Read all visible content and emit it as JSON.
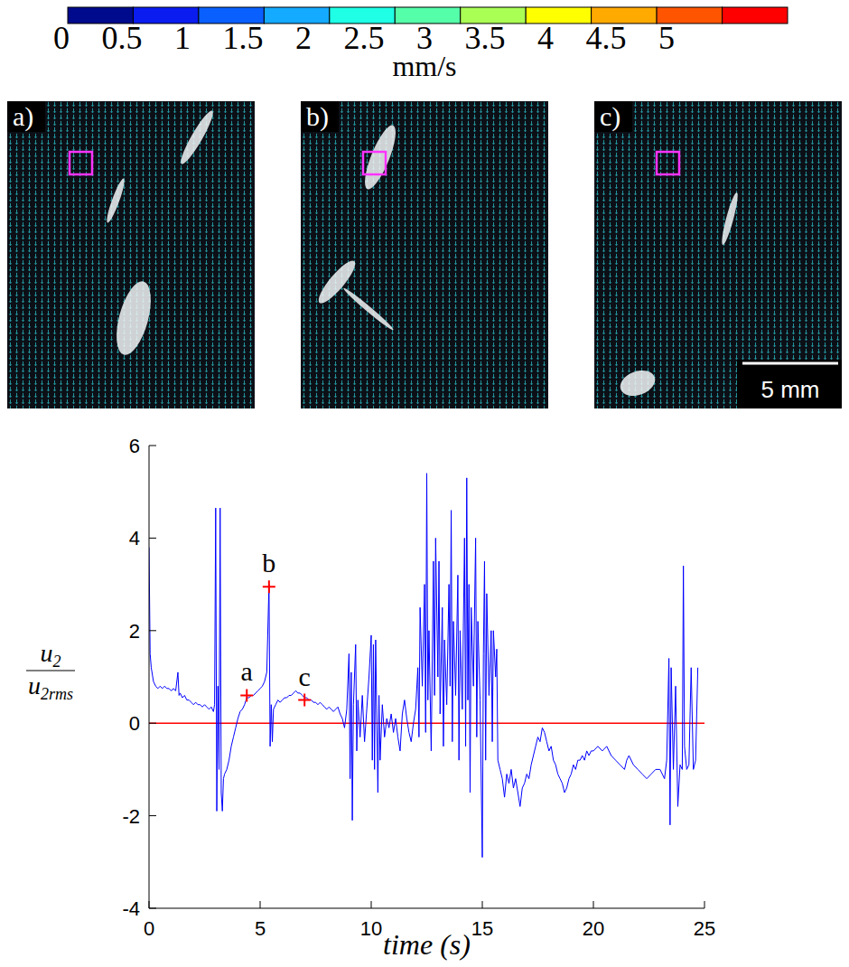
{
  "colorbar": {
    "ticks": [
      0,
      0.5,
      1,
      1.5,
      2,
      2.5,
      3,
      3.5,
      4,
      4.5,
      5
    ],
    "colors": [
      "#000a8c",
      "#0a1cf0",
      "#0a5fff",
      "#14aaff",
      "#1effe6",
      "#55ffaa",
      "#aaff55",
      "#ffff00",
      "#ffaa00",
      "#ff5500",
      "#ff0000"
    ],
    "label": "mm/s"
  },
  "panels": [
    {
      "label": "a)"
    },
    {
      "label": "b)"
    },
    {
      "label": "c)",
      "scale_bar": "5 mm"
    }
  ],
  "chart_data": {
    "type": "line",
    "xlabel": "time (s)",
    "ylabel": {
      "numerator": [
        "u",
        "2"
      ],
      "denominator": [
        "u",
        "2rms"
      ]
    },
    "xlim": [
      0,
      25
    ],
    "ylim": [
      -4,
      6
    ],
    "xticks": [
      0,
      5,
      10,
      15,
      20,
      25
    ],
    "yticks": [
      -4,
      -2,
      0,
      2,
      4,
      6
    ],
    "grid": false,
    "reference_lines": [
      {
        "y": 0,
        "color": "#ff0000"
      }
    ],
    "annotations": [
      {
        "text": "a",
        "x": 4.4,
        "y": 0.6,
        "color": "#ff0000",
        "marker": "plus"
      },
      {
        "text": "b",
        "x": 5.4,
        "y": 2.95,
        "color": "#ff0000",
        "marker": "plus"
      },
      {
        "text": "c",
        "x": 7.0,
        "y": 0.5,
        "color": "#ff0000",
        "marker": "plus"
      }
    ],
    "series": [
      {
        "color": "#0000ff",
        "x": [
          0,
          0.05,
          0.1,
          0.2,
          0.3,
          0.4,
          0.5,
          0.6,
          0.7,
          0.8,
          0.9,
          1.0,
          1.1,
          1.2,
          1.3,
          1.35,
          1.4,
          1.5,
          1.6,
          1.7,
          1.8,
          1.9,
          2.0,
          2.1,
          2.2,
          2.3,
          2.4,
          2.5,
          2.6,
          2.7,
          2.8,
          2.9,
          2.95,
          3.0,
          3.05,
          3.1,
          3.15,
          3.2,
          3.25,
          3.3,
          3.35,
          3.4,
          3.5,
          3.6,
          3.7,
          3.8,
          3.9,
          4.0,
          4.1,
          4.2,
          4.3,
          4.4,
          4.5,
          4.6,
          4.7,
          4.8,
          4.9,
          5.0,
          5.1,
          5.2,
          5.3,
          5.4,
          5.45,
          5.5,
          5.55,
          5.6,
          5.7,
          5.8,
          5.9,
          6.0,
          6.1,
          6.2,
          6.3,
          6.4,
          6.5,
          6.6,
          6.7,
          6.8,
          6.9,
          7.0,
          7.1,
          7.2,
          7.3,
          7.4,
          7.5,
          7.6,
          7.7,
          7.8,
          7.9,
          8.0,
          8.1,
          8.2,
          8.3,
          8.4,
          8.5,
          8.6,
          8.7,
          8.8,
          8.9,
          9.0,
          9.05,
          9.1,
          9.15,
          9.2,
          9.3,
          9.35,
          9.4,
          9.5,
          9.6,
          9.7,
          9.8,
          9.9,
          10.0,
          10.05,
          10.1,
          10.15,
          10.2,
          10.3,
          10.35,
          10.4,
          10.5,
          10.6,
          10.7,
          10.8,
          10.9,
          11.0,
          11.1,
          11.2,
          11.3,
          11.4,
          11.5,
          11.6,
          11.7,
          11.8,
          11.9,
          12.0,
          12.1,
          12.15,
          12.2,
          12.3,
          12.4,
          12.45,
          12.5,
          12.55,
          12.6,
          12.7,
          12.8,
          12.85,
          12.9,
          13.0,
          13.05,
          13.1,
          13.2,
          13.25,
          13.3,
          13.4,
          13.5,
          13.55,
          13.6,
          13.65,
          13.7,
          13.8,
          13.9,
          13.95,
          14.0,
          14.1,
          14.2,
          14.25,
          14.3,
          14.35,
          14.4,
          14.45,
          14.5,
          14.6,
          14.7,
          14.75,
          14.8,
          14.9,
          15.0,
          15.05,
          15.1,
          15.15,
          15.2,
          15.3,
          15.4,
          15.45,
          15.5,
          15.6,
          15.65,
          15.7,
          15.8,
          15.9,
          16.0,
          16.1,
          16.2,
          16.3,
          16.4,
          16.5,
          16.6,
          16.7,
          16.8,
          16.9,
          17.0,
          17.1,
          17.2,
          17.3,
          17.4,
          17.5,
          17.6,
          17.7,
          17.8,
          17.9,
          18.0,
          18.1,
          18.2,
          18.3,
          18.4,
          18.5,
          18.6,
          18.7,
          18.8,
          18.9,
          19.0,
          19.1,
          19.2,
          19.3,
          19.4,
          19.5,
          19.6,
          19.7,
          19.8,
          19.9,
          20.0,
          20.2,
          20.4,
          20.6,
          20.8,
          21.0,
          21.2,
          21.4,
          21.5,
          21.6,
          21.8,
          22.0,
          22.2,
          22.4,
          22.6,
          22.8,
          23.0,
          23.2,
          23.3,
          23.4,
          23.45,
          23.5,
          23.6,
          23.7,
          23.8,
          23.9,
          24.0,
          24.05,
          24.1,
          24.2,
          24.3,
          24.4,
          24.5,
          24.6,
          24.7
        ],
        "values": [
          3.8,
          1.5,
          1.2,
          0.9,
          0.8,
          0.75,
          0.8,
          0.75,
          0.8,
          0.75,
          0.75,
          0.7,
          0.75,
          0.7,
          1.1,
          0.6,
          0.65,
          0.55,
          0.6,
          0.5,
          0.5,
          0.45,
          0.4,
          0.45,
          0.4,
          0.4,
          0.35,
          0.4,
          0.35,
          0.3,
          0.35,
          0.25,
          0.4,
          4.65,
          -1.9,
          0.8,
          -1.0,
          4.65,
          -1.5,
          -1.9,
          -1.2,
          -1.1,
          -1.0,
          -0.8,
          -0.5,
          -0.3,
          -0.1,
          0.1,
          0.25,
          0.3,
          0.4,
          0.55,
          0.55,
          0.6,
          0.6,
          0.65,
          0.7,
          0.75,
          0.8,
          0.9,
          1.1,
          3.0,
          -0.5,
          0.4,
          -0.4,
          0.3,
          0.4,
          0.5,
          0.45,
          0.5,
          0.55,
          0.55,
          0.6,
          0.6,
          0.65,
          0.7,
          0.65,
          0.65,
          0.6,
          0.55,
          0.55,
          0.5,
          0.5,
          0.45,
          0.45,
          0.4,
          0.45,
          0.4,
          0.35,
          0.3,
          0.35,
          0.3,
          0.25,
          0.3,
          0.35,
          0.2,
          0.1,
          -0.1,
          0.3,
          1.5,
          -1.2,
          1.1,
          -2.1,
          0.4,
          1.7,
          -0.6,
          0.5,
          -0.3,
          0.6,
          -0.4,
          0.3,
          1.0,
          1.9,
          -0.8,
          1.7,
          -1.0,
          1.8,
          -1.5,
          0.6,
          -0.8,
          0.4,
          -0.3,
          0.1,
          -0.1,
          0.2,
          -0.2,
          0.1,
          -0.3,
          -0.6,
          0.2,
          0.5,
          0.1,
          -0.2,
          -0.4,
          0.0,
          0.3,
          1.2,
          -0.3,
          2.5,
          0.8,
          3.0,
          -0.2,
          5.4,
          0.5,
          2.0,
          -0.6,
          3.5,
          0.6,
          4.0,
          1.0,
          3.5,
          0.2,
          2.5,
          -0.5,
          1.8,
          0.4,
          3.0,
          0.8,
          4.6,
          -0.4,
          2.2,
          0.6,
          3.2,
          -0.8,
          2.0,
          0.3,
          4.0,
          -0.5,
          5.3,
          0.5,
          3.0,
          -1.5,
          2.5,
          0.8,
          4.0,
          -0.3,
          2.2,
          0.5,
          -2.9,
          1.5,
          3.5,
          -0.8,
          2.8,
          0.6,
          2.0,
          -0.4,
          2.0,
          1.0,
          1.6,
          -0.8,
          -1.0,
          -1.2,
          -1.6,
          -1.1,
          -1.3,
          -1.0,
          -1.4,
          -1.2,
          -1.5,
          -1.8,
          -1.4,
          -1.3,
          -1.1,
          -1.2,
          -0.9,
          -0.7,
          -0.5,
          -0.3,
          -0.4,
          -0.1,
          -0.2,
          -0.4,
          -0.6,
          -0.5,
          -0.8,
          -0.9,
          -1.1,
          -1.2,
          -1.3,
          -1.5,
          -1.4,
          -1.2,
          -1.1,
          -0.9,
          -1.0,
          -0.8,
          -0.8,
          -0.7,
          -0.8,
          -0.6,
          -0.7,
          -0.6,
          -0.6,
          -0.5,
          -0.6,
          -0.5,
          -0.7,
          -0.8,
          -0.9,
          -1.0,
          -0.8,
          -0.7,
          -0.9,
          -1.0,
          -1.1,
          -1.2,
          -1.1,
          -1.0,
          -1.0,
          -1.2,
          -0.8,
          1.4,
          -2.2,
          1.2,
          -1.0,
          0.8,
          -1.8,
          -0.9,
          -1.0,
          3.4,
          -0.5,
          -1.0,
          -0.9,
          1.2,
          -1.0,
          -0.8,
          1.2
        ]
      }
    ]
  }
}
